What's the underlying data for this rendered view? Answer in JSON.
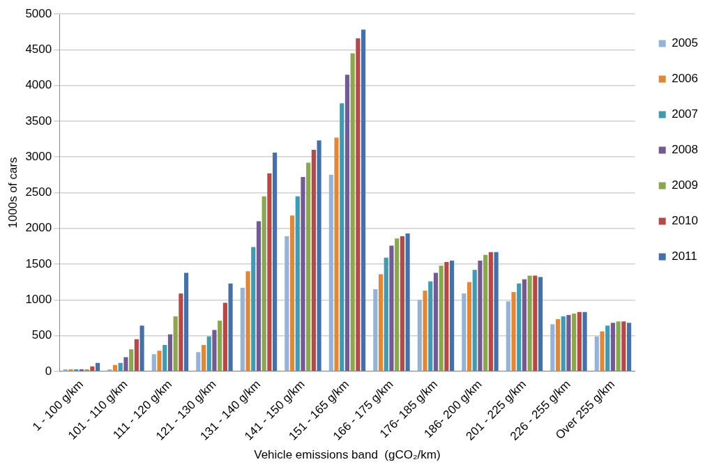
{
  "chart_data": {
    "type": "bar",
    "xlabel": "Vehicle emissions band  (gCO₂/km)",
    "ylabel": "1000s of cars",
    "categories": [
      "1 - 100 g/km",
      "101 - 110 g/km",
      "111 - 120 g/km",
      "121 - 130 g/km",
      "131 - 140 g/km",
      "141 - 150 g/km",
      "151 - 165 g/km",
      "166 - 175 g/km",
      "176- 185 g/km",
      "186- 200 g/km",
      "201 - 225 g/km",
      "226 - 255 g/km",
      "Over 255 g/km"
    ],
    "series": [
      {
        "name": "2005",
        "color": "#95b3d7",
        "values": [
          30,
          30,
          240,
          270,
          1170,
          1890,
          2750,
          1150,
          1000,
          1090,
          980,
          660,
          490
        ]
      },
      {
        "name": "2006",
        "color": "#e0873a",
        "values": [
          30,
          90,
          290,
          370,
          1400,
          2180,
          3270,
          1360,
          1130,
          1250,
          1110,
          730,
          560
        ]
      },
      {
        "name": "2007",
        "color": "#4299b0",
        "values": [
          30,
          120,
          370,
          490,
          1740,
          2450,
          3750,
          1590,
          1260,
          1420,
          1230,
          770,
          640
        ]
      },
      {
        "name": "2008",
        "color": "#735a93",
        "values": [
          30,
          200,
          520,
          580,
          2100,
          2720,
          4150,
          1760,
          1380,
          1550,
          1290,
          790,
          680
        ]
      },
      {
        "name": "2009",
        "color": "#8aa64f",
        "values": [
          30,
          310,
          770,
          710,
          2450,
          2920,
          4450,
          1860,
          1480,
          1630,
          1340,
          810,
          700
        ]
      },
      {
        "name": "2010",
        "color": "#b44a48",
        "values": [
          70,
          450,
          1090,
          960,
          2770,
          3100,
          4660,
          1890,
          1530,
          1670,
          1340,
          830,
          700
        ]
      },
      {
        "name": "2011",
        "color": "#4571a8",
        "values": [
          120,
          640,
          1380,
          1230,
          3060,
          3230,
          4780,
          1930,
          1550,
          1670,
          1320,
          830,
          680
        ]
      }
    ],
    "ylim": [
      0,
      5000
    ],
    "yticks": [
      0,
      500,
      1000,
      1500,
      2000,
      2500,
      3000,
      3500,
      4000,
      4500,
      5000
    ],
    "grid": "y",
    "legend": "right"
  }
}
